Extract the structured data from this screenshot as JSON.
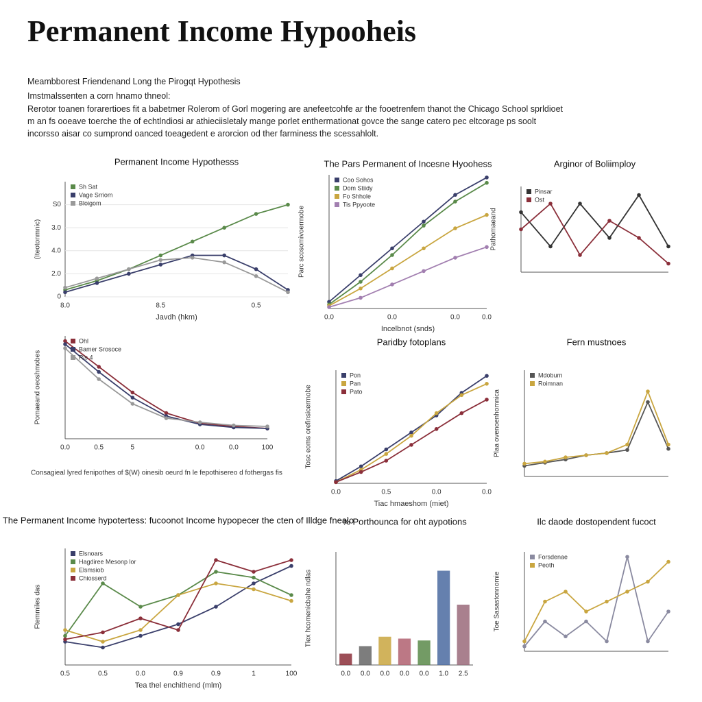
{
  "header": {
    "title": "Permanent Income Hypooheis",
    "subtitle": "Meambborest Friendenand Long the Pirogqt Hypothesis",
    "intro": "Imstmalssenten a corn hnamo thneol:",
    "paragraph": [
      "Rerotor toanen forarertioes fit a babetmer Rolerom of Gorl mogering are anefeetcohfe ar the fooetrenfem thanot the Chicago School sprldioet",
      "m an fs ooeave toerche the of echtlndiosi ar athieciisletaly mange porlet enthermationat govce the sange catero pec eltcorage ps soolt",
      "incorsso aisar co sumprond oanced toeagedent e arorcion od ther farminess the scessahlolt."
    ]
  },
  "chart_data": [
    {
      "type": "line",
      "title": "Permanent Income Hypothesss",
      "x_label": "Javdh (hkm)",
      "y_label": "(Iteotonmnic)",
      "categories": [
        "8.0",
        null,
        null,
        "8.5",
        null,
        null,
        "0.5",
        null
      ],
      "ylim": [
        0,
        5
      ],
      "yticks": [
        0,
        {
          "value": 1,
          "label": "2.0"
        },
        {
          "value": 2,
          "label": "4.0"
        },
        {
          "value": 3,
          "label": "3.0"
        },
        {
          "value": 4,
          "label": "S0"
        }
      ],
      "series": [
        {
          "name": "Sh Sat",
          "color": "#5a8a4a",
          "values": [
            0.3,
            0.7,
            1.2,
            1.8,
            2.4,
            3.0,
            3.6,
            4.0
          ]
        },
        {
          "name": "Vage Srriom",
          "color": "#3a3f6b",
          "values": [
            0.2,
            0.6,
            1.0,
            1.4,
            1.8,
            1.8,
            1.2,
            0.3
          ]
        },
        {
          "name": "Bloigom",
          "color": "#999999",
          "values": [
            0.4,
            0.8,
            1.2,
            1.6,
            1.7,
            1.5,
            0.9,
            0.2
          ]
        }
      ]
    },
    {
      "type": "line",
      "title": "The Pars Permanent of Incesne Hyoohess",
      "x_label": "Incelbnot (snds)",
      "y_label": "Parc scosomivoerrnobe",
      "categories": [
        "0.0",
        null,
        "0.0",
        null,
        "0.0",
        "0.0"
      ],
      "ylim": [
        0,
        10
      ],
      "series": [
        {
          "name": "Coo Sohos",
          "color": "#3a3f6b",
          "values": [
            0.5,
            2.5,
            4.5,
            6.5,
            8.5,
            9.8
          ]
        },
        {
          "name": "Dom Stiidy",
          "color": "#5a8a4a",
          "values": [
            0.3,
            2.0,
            4.0,
            6.2,
            8.0,
            9.4
          ]
        },
        {
          "name": "Fo Shhole",
          "color": "#c9a640",
          "values": [
            0.2,
            1.5,
            3.0,
            4.5,
            6.0,
            7.0
          ]
        },
        {
          "name": "Tis Ppyoote",
          "color": "#a27fb0",
          "values": [
            0.1,
            0.8,
            1.8,
            2.8,
            3.8,
            4.6
          ]
        }
      ]
    },
    {
      "type": "line",
      "title": "Arginor of Boliimploy",
      "y_label": "Pathomaeand",
      "categories": [
        null,
        null,
        null,
        null,
        null,
        null
      ],
      "ylim": [
        0,
        10
      ],
      "series": [
        {
          "name": "Pinsar",
          "color": "#333333",
          "values": [
            7,
            3,
            8,
            4,
            9,
            3
          ]
        },
        {
          "name": "Ost",
          "color": "#8b2f3a",
          "values": [
            5,
            8,
            2,
            6,
            4,
            1
          ]
        }
      ]
    },
    {
      "type": "line",
      "y_label": "Pomaeand oeoshmobes",
      "annotation": "Consagieal lyred fenipothes of $(W) oinesib oeurd fn le fepothisereo d fothergas fis",
      "categories": [
        "0.0",
        "0.5",
        "5",
        null,
        "0.0",
        "0.0",
        "100"
      ],
      "ylim": [
        0,
        10
      ],
      "series": [
        {
          "name": "Ohl",
          "color": "#8b2f3a",
          "values": [
            9.5,
            7,
            4.5,
            2.5,
            1.5,
            1.2,
            1.0
          ]
        },
        {
          "name": "Bamer Srosoce",
          "color": "#3a3f6b",
          "values": [
            9.2,
            6.5,
            4.0,
            2.2,
            1.4,
            1.1,
            1.0
          ]
        },
        {
          "name": "Ris 4",
          "color": "#999999",
          "values": [
            8.8,
            5.8,
            3.4,
            2.0,
            1.6,
            1.3,
            1.2
          ]
        }
      ]
    },
    {
      "type": "line",
      "title": "Paridby fotoplans",
      "x_label": "Tiac hmaeshom (miet)",
      "y_label": "Tosc eoms orefinsicerrnobe",
      "categories": [
        "0.0",
        null,
        "0.5",
        null,
        "0.0",
        null,
        "0.0"
      ],
      "ylim": [
        0,
        10
      ],
      "series": [
        {
          "name": "Pon",
          "color": "#3a3f6b",
          "values": [
            0.2,
            1.5,
            3,
            4.5,
            6,
            8,
            9.5
          ]
        },
        {
          "name": "Pan",
          "color": "#c9a640",
          "values": [
            0.1,
            1.2,
            2.6,
            4.2,
            6.2,
            7.8,
            8.8
          ]
        },
        {
          "name": "Pato",
          "color": "#8b2f3a",
          "values": [
            0.1,
            1,
            2,
            3.4,
            4.8,
            6.2,
            7.4
          ]
        }
      ]
    },
    {
      "type": "line",
      "title": "Fern mustnoes",
      "y_label": "Plaa ovenoenhomnica",
      "categories": [
        null,
        null,
        null,
        null,
        null,
        null,
        null,
        null
      ],
      "ylim": [
        0,
        10
      ],
      "series": [
        {
          "name": "Mdoburn",
          "color": "#555555",
          "values": [
            1,
            1.3,
            1.6,
            2,
            2.2,
            2.5,
            7,
            2.6
          ]
        },
        {
          "name": "Roimnan",
          "color": "#c9a640",
          "values": [
            1.2,
            1.4,
            1.8,
            2,
            2.2,
            3,
            8,
            3
          ]
        }
      ]
    },
    {
      "type": "line",
      "title": "The Permanent Income hypotertess: fucoonot Income hypopecer the cten of Illdge fnealo",
      "x_label": "Tea thel enchithend (mlm)",
      "y_label": "Ftemmiles das",
      "categories": [
        "0.5",
        "0.5",
        "0.0",
        "0.9",
        "0.9",
        "1",
        "100"
      ],
      "ylim": [
        0,
        10
      ],
      "series": [
        {
          "name": "Elsnoars",
          "color": "#3a3f6b",
          "values": [
            2,
            1.5,
            2.5,
            3.5,
            5,
            7,
            8.5
          ]
        },
        {
          "name": "Hagdiree Mesonp lor",
          "color": "#5a8a4a",
          "values": [
            2.5,
            7,
            5,
            6,
            8,
            7.5,
            6
          ]
        },
        {
          "name": "Elsmsiob",
          "color": "#c9a640",
          "values": [
            3,
            2,
            3,
            6,
            7,
            6.5,
            5.5
          ]
        },
        {
          "name": "Chiosserd",
          "color": "#8b2f3a",
          "values": [
            2.2,
            2.8,
            4,
            3,
            9,
            8,
            9
          ]
        }
      ]
    },
    {
      "type": "bar",
      "title": "% Porthounca for oht aypotions",
      "y_label": "Tlex hcomenicbahe ndlas",
      "categories": [
        "0.0",
        "0.0",
        "0.0",
        "0.0",
        "0.0",
        "1.0",
        "2.5"
      ],
      "ylim": [
        0,
        6
      ],
      "values": [
        0.6,
        1.0,
        1.5,
        1.4,
        1.3,
        5.0,
        3.2
      ],
      "colors": [
        "#8b2f3a",
        "#666666",
        "#c9a640",
        "#b06070",
        "#5a8a4a",
        "#4a6aa0",
        "#9a6a7a"
      ]
    },
    {
      "type": "line",
      "title": "Ilc daode dostopendent fucoct",
      "y_label": "Toe Sasastonnomie",
      "categories": [
        null,
        null,
        null,
        null,
        null,
        null,
        null,
        null
      ],
      "ylim": [
        0,
        10
      ],
      "series": [
        {
          "name": "Forsdenae",
          "color": "#8a8aa0",
          "values": [
            0.5,
            3,
            1.5,
            3,
            1,
            9.5,
            1,
            4
          ]
        },
        {
          "name": "Peoth",
          "color": "#c9a640",
          "values": [
            1,
            5,
            6,
            4,
            5,
            6,
            7,
            9
          ]
        }
      ]
    }
  ]
}
